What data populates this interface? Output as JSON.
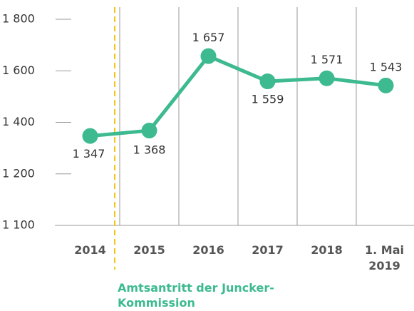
{
  "chart_data": {
    "type": "line",
    "categories": [
      "2014",
      "2015",
      "2016",
      "2017",
      "2018",
      "1. Mai 2019"
    ],
    "series": [
      {
        "color": "#3dba8f",
        "values": [
          1347,
          1368,
          1657,
          1559,
          1571,
          1543
        ],
        "value_labels": [
          "1 347",
          "1 368",
          "1 657",
          "1 559",
          "1 571",
          "1 543"
        ]
      }
    ],
    "ylim": [
      1100,
      1800
    ],
    "yticks": [
      {
        "value": 1800,
        "label": "1 800"
      },
      {
        "value": 1600,
        "label": "1 600"
      },
      {
        "value": 1400,
        "label": "1 400"
      },
      {
        "value": 1200,
        "label": "1 200"
      },
      {
        "value": 1100,
        "label": "1 100"
      }
    ],
    "annotation": "Amtsantritt der Juncker-Kommission",
    "annotation_color": "#3dba8f",
    "event_line_color": "#f5c518"
  }
}
